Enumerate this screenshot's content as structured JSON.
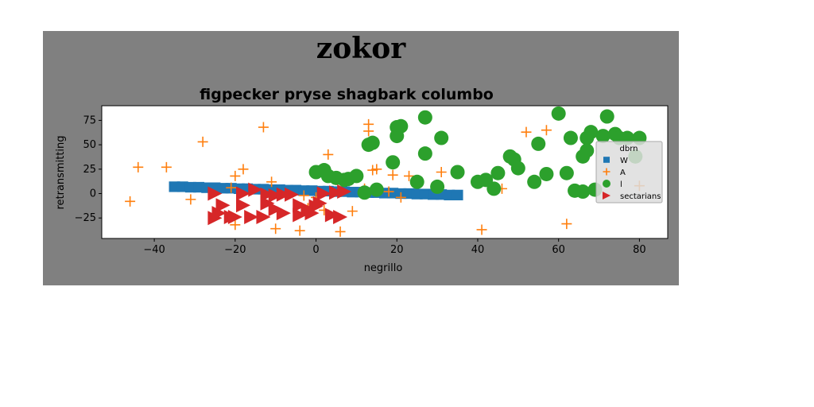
{
  "chart_data": {
    "type": "scatter",
    "suptitle": "zokor",
    "title": "figpecker pryse shagbark columbo",
    "xlabel": "negrillo",
    "ylabel": "retransmitting",
    "xlim": [
      -53,
      87
    ],
    "ylim": [
      -46,
      90
    ],
    "xticks": [
      -40,
      -20,
      0,
      20,
      40,
      60,
      80
    ],
    "yticks": [
      -25,
      0,
      25,
      50,
      75
    ],
    "grid": false,
    "legend": {
      "title": "dbrn",
      "placement": "right"
    },
    "series": [
      {
        "name": "W",
        "marker": "square",
        "color": "#1f77b4",
        "points": [
          [
            -35,
            7
          ],
          [
            -33,
            7
          ],
          [
            -31,
            6.5
          ],
          [
            -29,
            6.5
          ],
          [
            -27,
            6
          ],
          [
            -25,
            6
          ],
          [
            -23,
            5.5
          ],
          [
            -21,
            5.5
          ],
          [
            -19,
            5
          ],
          [
            -17,
            5
          ],
          [
            -15,
            4.5
          ],
          [
            -13,
            4.5
          ],
          [
            -11,
            4
          ],
          [
            -9,
            4
          ],
          [
            -7,
            3.5
          ],
          [
            -5,
            3.5
          ],
          [
            -3,
            3
          ],
          [
            -1,
            3
          ],
          [
            1,
            2.5
          ],
          [
            3,
            2.5
          ],
          [
            5,
            2
          ],
          [
            7,
            2
          ],
          [
            9,
            1.5
          ],
          [
            11,
            1.5
          ],
          [
            13,
            1
          ],
          [
            15,
            1
          ],
          [
            17,
            0.5
          ],
          [
            19,
            0.5
          ],
          [
            21,
            0
          ],
          [
            23,
            0
          ],
          [
            25,
            -0.5
          ],
          [
            27,
            -0.5
          ],
          [
            29,
            -1
          ],
          [
            31,
            -1
          ],
          [
            33,
            -1.5
          ],
          [
            35,
            -1.5
          ]
        ]
      },
      {
        "name": "A",
        "marker": "plus",
        "color": "#ff7f0e",
        "points": [
          [
            -46,
            -8
          ],
          [
            -44,
            27
          ],
          [
            -37,
            27
          ],
          [
            -31,
            -6
          ],
          [
            -28,
            53
          ],
          [
            -21,
            6
          ],
          [
            -20,
            -32
          ],
          [
            -20,
            18
          ],
          [
            -18,
            25
          ],
          [
            -13,
            68
          ],
          [
            -11,
            12
          ],
          [
            -10,
            -36
          ],
          [
            -4,
            -38
          ],
          [
            -3,
            -2
          ],
          [
            -2,
            -15
          ],
          [
            0,
            -4
          ],
          [
            2,
            -17
          ],
          [
            3,
            40
          ],
          [
            6,
            -39
          ],
          [
            9,
            -18
          ],
          [
            12,
            5
          ],
          [
            13,
            71
          ],
          [
            13,
            64
          ],
          [
            14,
            24
          ],
          [
            15,
            25
          ],
          [
            18,
            2
          ],
          [
            19,
            19
          ],
          [
            21,
            -4
          ],
          [
            23,
            18
          ],
          [
            31,
            22
          ],
          [
            41,
            -37
          ],
          [
            46,
            5
          ],
          [
            52,
            63
          ],
          [
            57,
            65
          ],
          [
            62,
            -31
          ],
          [
            80,
            8
          ]
        ]
      },
      {
        "name": "l",
        "marker": "circle",
        "color": "#2ca02c",
        "points": [
          [
            0,
            22
          ],
          [
            2,
            24
          ],
          [
            3,
            18
          ],
          [
            5,
            16
          ],
          [
            7,
            14
          ],
          [
            8,
            15
          ],
          [
            10,
            18
          ],
          [
            12,
            1
          ],
          [
            13,
            50
          ],
          [
            14,
            52
          ],
          [
            15,
            4
          ],
          [
            19,
            32
          ],
          [
            20,
            68
          ],
          [
            20,
            59
          ],
          [
            21,
            69
          ],
          [
            25,
            12
          ],
          [
            27,
            78
          ],
          [
            27,
            41
          ],
          [
            30,
            7
          ],
          [
            31,
            57
          ],
          [
            35,
            22
          ],
          [
            40,
            12
          ],
          [
            42,
            14
          ],
          [
            44,
            5
          ],
          [
            45,
            21
          ],
          [
            48,
            38
          ],
          [
            49,
            35
          ],
          [
            50,
            26
          ],
          [
            54,
            12
          ],
          [
            55,
            51
          ],
          [
            57,
            20
          ],
          [
            60,
            82
          ],
          [
            62,
            21
          ],
          [
            63,
            57
          ],
          [
            64,
            3
          ],
          [
            66,
            2
          ],
          [
            66,
            38
          ],
          [
            67,
            44
          ],
          [
            67,
            57
          ],
          [
            68,
            63
          ],
          [
            69,
            4
          ],
          [
            71,
            59
          ],
          [
            72,
            79
          ],
          [
            74,
            61
          ],
          [
            75,
            57
          ],
          [
            77,
            57
          ],
          [
            79,
            38
          ],
          [
            80,
            57
          ]
        ]
      },
      {
        "name": "sectarians",
        "marker": "triangle-right",
        "color": "#d62728",
        "points": [
          [
            -25,
            -25
          ],
          [
            -25,
            0
          ],
          [
            -24,
            -20
          ],
          [
            -23,
            -12
          ],
          [
            -21,
            -24
          ],
          [
            -20,
            -24
          ],
          [
            -18,
            0
          ],
          [
            -18,
            -12
          ],
          [
            -16,
            -24
          ],
          [
            -15,
            4
          ],
          [
            -13,
            -24
          ],
          [
            -12,
            -10
          ],
          [
            -12,
            -1
          ],
          [
            -10,
            -16
          ],
          [
            -10,
            -2
          ],
          [
            -8,
            -20
          ],
          [
            -8,
            -1
          ],
          [
            -6,
            -1
          ],
          [
            -4,
            -22
          ],
          [
            -4,
            -12
          ],
          [
            -2,
            -16
          ],
          [
            -1,
            -20
          ],
          [
            0,
            -13
          ],
          [
            1,
            -10
          ],
          [
            2,
            0
          ],
          [
            4,
            -22
          ],
          [
            5,
            1
          ],
          [
            6,
            -24
          ],
          [
            7,
            2
          ]
        ]
      }
    ]
  }
}
